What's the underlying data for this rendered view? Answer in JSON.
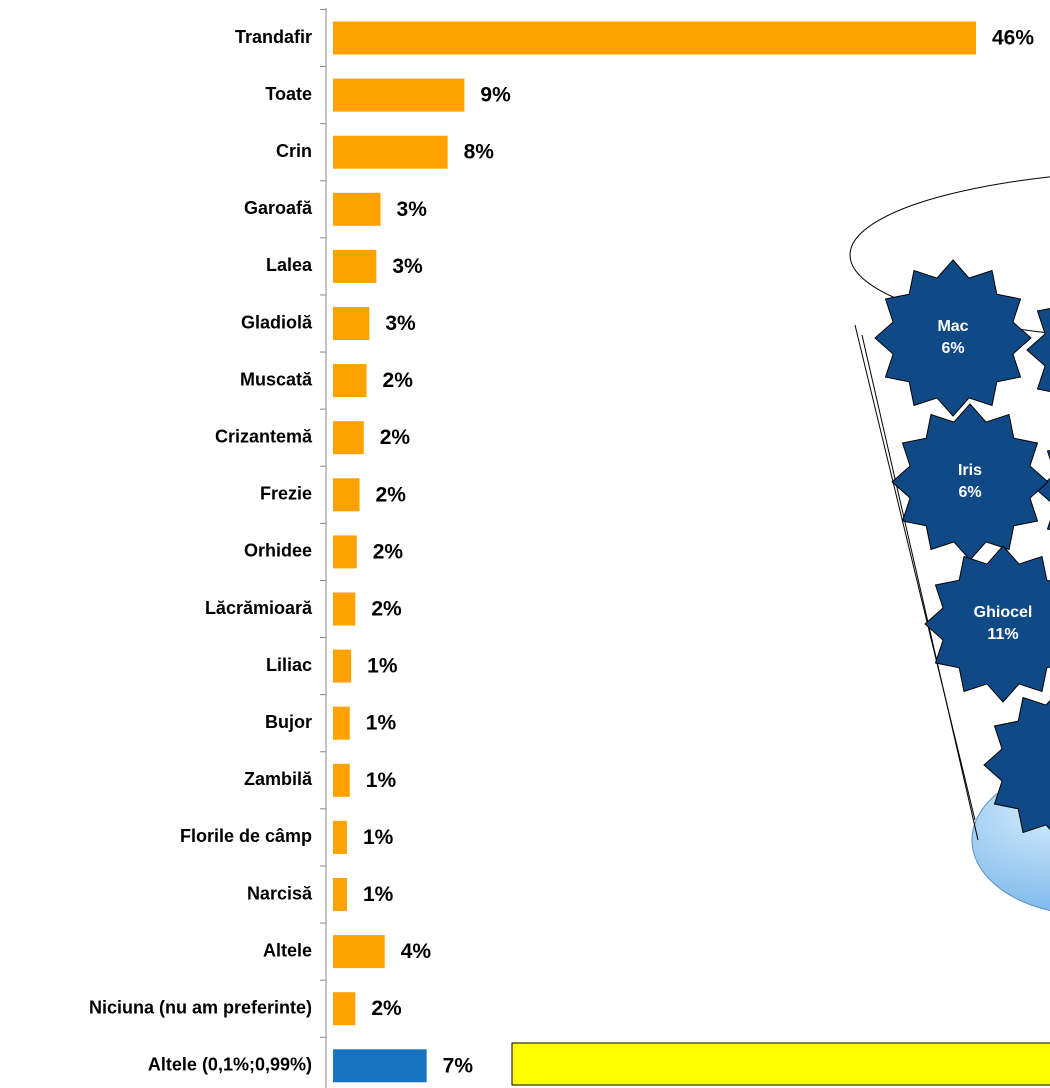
{
  "chart_data": {
    "type": "bar",
    "orientation": "horizontal",
    "categories": [
      "Trandafir",
      "Toate",
      "Crin",
      "Garoafă",
      "Lalea",
      "Gladiolă",
      "Muscată",
      "Crizantemă",
      "Frezie",
      "Orhidee",
      "Lăcrămioară",
      "Liliac",
      "Bujor",
      "Zambilă",
      "Florile de câmp",
      "Narcisă",
      "Altele",
      "Niciuna (nu am preferinte)",
      "Altele (0,1%;0,99%)"
    ],
    "values": [
      46,
      9.4,
      8.2,
      3.4,
      3.1,
      2.6,
      2.4,
      2.2,
      1.9,
      1.7,
      1.6,
      1.3,
      1.2,
      1.2,
      1.0,
      1.0,
      3.7,
      1.6,
      6.7
    ],
    "value_labels": [
      "46%",
      "9%",
      "8%",
      "3%",
      "3%",
      "3%",
      "2%",
      "2%",
      "2%",
      "2%",
      "2%",
      "1%",
      "1%",
      "1%",
      "1%",
      "1%",
      "4%",
      "2%",
      "7%"
    ],
    "colors": [
      "#ffa200",
      "#ffa200",
      "#ffa200",
      "#ffa200",
      "#ffa200",
      "#ffa200",
      "#ffa200",
      "#ffa200",
      "#ffa200",
      "#ffa200",
      "#ffa200",
      "#ffa200",
      "#ffa200",
      "#ffa200",
      "#ffa200",
      "#ffa200",
      "#ffa200",
      "#ffa200",
      "#1874c1"
    ],
    "callouts": [
      {
        "name": "Mac",
        "label": "6%"
      },
      {
        "name": "Iris",
        "label": "6%"
      },
      {
        "name": "Ghiocel",
        "label": "11%"
      }
    ]
  }
}
